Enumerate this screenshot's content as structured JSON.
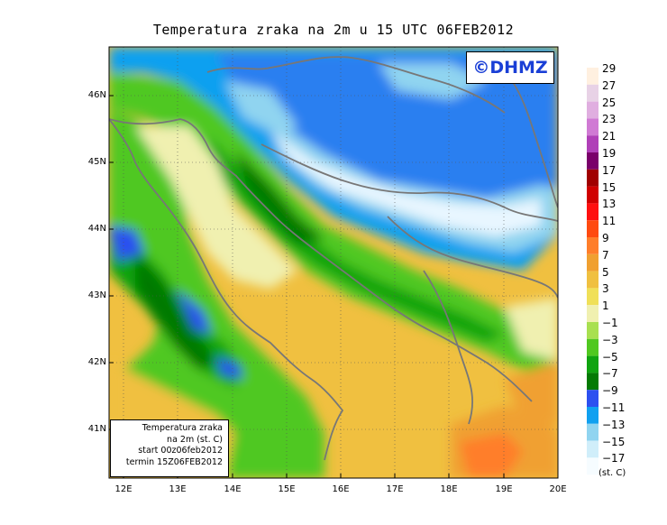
{
  "map": {
    "title": "Temperatura zraka na 2m u 15 UTC 06FEB2012",
    "copyright": "©DHMZ",
    "info_box": {
      "line1": "Temperatura zraka",
      "line2": "na 2m (st. C)",
      "line3": "start 00z06feb2012",
      "line4": "termin 15Z06FEB2012"
    },
    "lat_labels": [
      "46N",
      "45N",
      "44N",
      "43N",
      "42N",
      "41N"
    ],
    "lon_labels": [
      "12E",
      "13E",
      "14E",
      "15E",
      "16E",
      "17E",
      "18E",
      "19E",
      "20E"
    ],
    "legend": {
      "units": "(st. C)",
      "labels": [
        "29",
        "27",
        "25",
        "23",
        "21",
        "19",
        "17",
        "15",
        "13",
        "11",
        "9",
        "7",
        "5",
        "3",
        "1",
        "−1",
        "−3",
        "−5",
        "−7",
        "−9",
        "−11",
        "−13",
        "−15",
        "−17"
      ],
      "colors": [
        "#fff0e0",
        "#e8d2e6",
        "#e0aee0",
        "#d07ad4",
        "#b040b8",
        "#7a006a",
        "#a00000",
        "#d00000",
        "#ff1010",
        "#ff4a10",
        "#ff7e2a",
        "#f0a030",
        "#f0c040",
        "#f0e058",
        "#f0f0b0",
        "#a8e050",
        "#50c820",
        "#10a410",
        "#047a04",
        "#2c50f0",
        "#10a0f0",
        "#90d4f0",
        "#d0eefa",
        "#f6fcff"
      ]
    }
  }
}
